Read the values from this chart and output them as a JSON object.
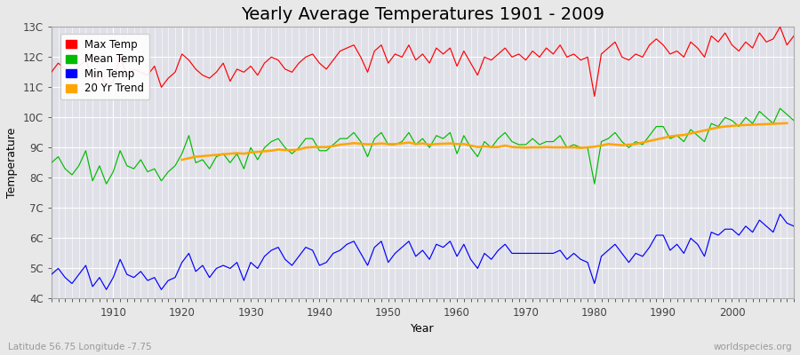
{
  "title": "Yearly Average Temperatures 1901 - 2009",
  "xlabel": "Year",
  "ylabel": "Temperature",
  "subtitle_lat": "Latitude 56.75 Longitude -7.75",
  "watermark": "worldspecies.org",
  "years": [
    1901,
    1902,
    1903,
    1904,
    1905,
    1906,
    1907,
    1908,
    1909,
    1910,
    1911,
    1912,
    1913,
    1914,
    1915,
    1916,
    1917,
    1918,
    1919,
    1920,
    1921,
    1922,
    1923,
    1924,
    1925,
    1926,
    1927,
    1928,
    1929,
    1930,
    1931,
    1932,
    1933,
    1934,
    1935,
    1936,
    1937,
    1938,
    1939,
    1940,
    1941,
    1942,
    1943,
    1944,
    1945,
    1946,
    1947,
    1948,
    1949,
    1950,
    1951,
    1952,
    1953,
    1954,
    1955,
    1956,
    1957,
    1958,
    1959,
    1960,
    1961,
    1962,
    1963,
    1964,
    1965,
    1966,
    1967,
    1968,
    1969,
    1970,
    1971,
    1972,
    1973,
    1974,
    1975,
    1976,
    1977,
    1978,
    1979,
    1980,
    1981,
    1982,
    1983,
    1984,
    1985,
    1986,
    1987,
    1988,
    1989,
    1990,
    1991,
    1992,
    1993,
    1994,
    1995,
    1996,
    1997,
    1998,
    1999,
    2000,
    2001,
    2002,
    2003,
    2004,
    2005,
    2006,
    2007,
    2008,
    2009
  ],
  "max_temp": [
    11.5,
    11.8,
    11.6,
    11.4,
    11.7,
    11.9,
    11.3,
    11.5,
    11.0,
    11.2,
    12.0,
    11.4,
    11.6,
    11.5,
    11.4,
    11.7,
    11.0,
    11.3,
    11.5,
    12.1,
    11.9,
    11.6,
    11.4,
    11.3,
    11.5,
    11.8,
    11.2,
    11.6,
    11.5,
    11.7,
    11.4,
    11.8,
    12.0,
    11.9,
    11.6,
    11.5,
    11.8,
    12.0,
    12.1,
    11.8,
    11.6,
    11.9,
    12.2,
    12.3,
    12.4,
    12.0,
    11.5,
    12.2,
    12.4,
    11.8,
    12.1,
    12.0,
    12.4,
    11.9,
    12.1,
    11.8,
    12.3,
    12.1,
    12.3,
    11.7,
    12.2,
    11.8,
    11.4,
    12.0,
    11.9,
    12.1,
    12.3,
    12.0,
    12.1,
    11.9,
    12.2,
    12.0,
    12.3,
    12.1,
    12.4,
    12.0,
    12.1,
    11.9,
    12.0,
    10.7,
    12.1,
    12.3,
    12.5,
    12.0,
    11.9,
    12.1,
    12.0,
    12.4,
    12.6,
    12.4,
    12.1,
    12.2,
    12.0,
    12.5,
    12.3,
    12.0,
    12.7,
    12.5,
    12.8,
    12.4,
    12.2,
    12.5,
    12.3,
    12.8,
    12.5,
    12.6,
    13.0,
    12.4,
    12.7
  ],
  "mean_temp": [
    8.5,
    8.7,
    8.3,
    8.1,
    8.4,
    8.9,
    7.9,
    8.4,
    7.8,
    8.2,
    8.9,
    8.4,
    8.3,
    8.6,
    8.2,
    8.3,
    7.9,
    8.2,
    8.4,
    8.8,
    9.4,
    8.5,
    8.6,
    8.3,
    8.7,
    8.8,
    8.5,
    8.8,
    8.3,
    9.0,
    8.6,
    9.0,
    9.2,
    9.3,
    9.0,
    8.8,
    9.0,
    9.3,
    9.3,
    8.9,
    8.9,
    9.1,
    9.3,
    9.3,
    9.5,
    9.2,
    8.7,
    9.3,
    9.5,
    9.1,
    9.1,
    9.2,
    9.5,
    9.1,
    9.3,
    9.0,
    9.4,
    9.3,
    9.5,
    8.8,
    9.4,
    9.0,
    8.7,
    9.2,
    9.0,
    9.3,
    9.5,
    9.2,
    9.1,
    9.1,
    9.3,
    9.1,
    9.2,
    9.2,
    9.4,
    9.0,
    9.1,
    9.0,
    9.0,
    7.8,
    9.2,
    9.3,
    9.5,
    9.2,
    9.0,
    9.2,
    9.1,
    9.4,
    9.7,
    9.7,
    9.3,
    9.4,
    9.2,
    9.6,
    9.4,
    9.2,
    9.8,
    9.7,
    10.0,
    9.9,
    9.7,
    10.0,
    9.8,
    10.2,
    10.0,
    9.8,
    10.3,
    10.1,
    9.9
  ],
  "min_temp": [
    4.8,
    5.0,
    4.7,
    4.5,
    4.8,
    5.1,
    4.4,
    4.7,
    4.3,
    4.7,
    5.3,
    4.8,
    4.7,
    4.9,
    4.6,
    4.7,
    4.3,
    4.6,
    4.7,
    5.2,
    5.5,
    4.9,
    5.1,
    4.7,
    5.0,
    5.1,
    5.0,
    5.2,
    4.6,
    5.2,
    5.0,
    5.4,
    5.6,
    5.7,
    5.3,
    5.1,
    5.4,
    5.7,
    5.6,
    5.1,
    5.2,
    5.5,
    5.6,
    5.8,
    5.9,
    5.5,
    5.1,
    5.7,
    5.9,
    5.2,
    5.5,
    5.7,
    5.9,
    5.4,
    5.6,
    5.3,
    5.8,
    5.7,
    5.9,
    5.4,
    5.8,
    5.3,
    5.0,
    5.5,
    5.3,
    5.6,
    5.8,
    5.5,
    5.5,
    5.5,
    5.5,
    5.5,
    5.5,
    5.5,
    5.6,
    5.3,
    5.5,
    5.3,
    5.2,
    4.5,
    5.4,
    5.6,
    5.8,
    5.5,
    5.2,
    5.5,
    5.4,
    5.7,
    6.1,
    6.1,
    5.6,
    5.8,
    5.5,
    6.0,
    5.8,
    5.4,
    6.2,
    6.1,
    6.3,
    6.3,
    6.1,
    6.4,
    6.2,
    6.6,
    6.4,
    6.2,
    6.8,
    6.5,
    6.4
  ],
  "trend_20yr": [
    null,
    null,
    null,
    null,
    null,
    null,
    null,
    null,
    null,
    null,
    null,
    null,
    null,
    null,
    null,
    null,
    null,
    null,
    null,
    8.6,
    8.65,
    8.7,
    8.72,
    8.74,
    8.76,
    8.78,
    8.8,
    8.82,
    8.8,
    8.84,
    8.86,
    8.88,
    8.9,
    8.94,
    8.92,
    8.92,
    8.94,
    9.0,
    9.02,
    9.02,
    9.02,
    9.05,
    9.1,
    9.12,
    9.15,
    9.13,
    9.11,
    9.12,
    9.14,
    9.12,
    9.12,
    9.14,
    9.17,
    9.12,
    9.14,
    9.1,
    9.12,
    9.13,
    9.14,
    9.12,
    9.12,
    9.07,
    9.02,
    9.04,
    9.02,
    9.02,
    9.07,
    9.02,
    9.01,
    9.0,
    9.01,
    9.01,
    9.02,
    9.01,
    9.01,
    9.01,
    9.01,
    8.99,
    9.01,
    9.03,
    9.07,
    9.12,
    9.1,
    9.08,
    9.1,
    9.12,
    9.17,
    9.22,
    9.27,
    9.32,
    9.37,
    9.4,
    9.42,
    9.47,
    9.52,
    9.57,
    9.62,
    9.67,
    9.7,
    9.72,
    9.74,
    9.75,
    9.76,
    9.77,
    9.78,
    9.79,
    9.8,
    9.81
  ],
  "max_color": "#ff0000",
  "mean_color": "#00bb00",
  "min_color": "#0000ff",
  "trend_color": "#ffa500",
  "bg_color": "#e8e8e8",
  "plot_bg_color": "#e0e0e8",
  "grid_color": "#ffffff",
  "ylim": [
    4,
    13
  ],
  "yticks": [
    4,
    5,
    6,
    7,
    8,
    9,
    10,
    11,
    12,
    13
  ],
  "ytick_labels": [
    "4C",
    "5C",
    "6C",
    "7C",
    "8C",
    "9C",
    "10C",
    "11C",
    "12C",
    "13C"
  ],
  "xlim": [
    1901,
    2009
  ],
  "xticks": [
    1910,
    1920,
    1930,
    1940,
    1950,
    1960,
    1970,
    1980,
    1990,
    2000
  ],
  "title_fontsize": 14,
  "legend_fontsize": 8.5,
  "axis_label_fontsize": 9,
  "tick_fontsize": 8.5
}
